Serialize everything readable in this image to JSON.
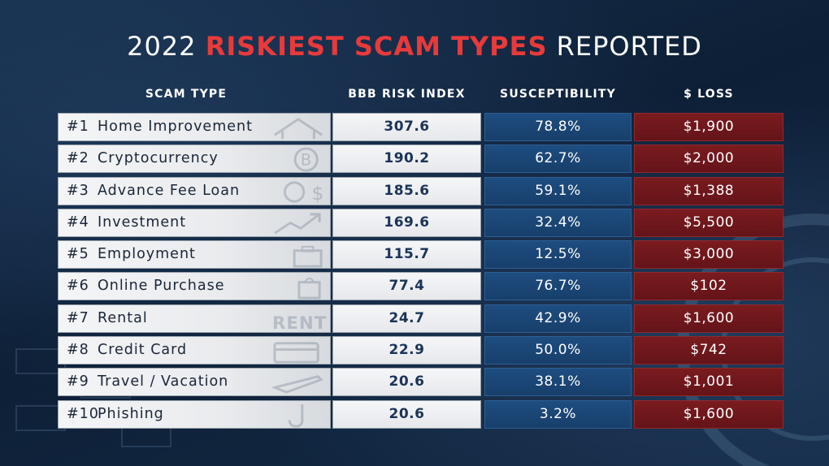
{
  "title": {
    "prefix": "2022",
    "accent": "RISKIEST SCAM TYPES",
    "suffix": "REPORTED"
  },
  "colors": {
    "accent": "#e83a3a",
    "susceptibility": "#1e4d80",
    "loss": "#7a1b1f"
  },
  "chart_data": {
    "type": "table",
    "columns": [
      "SCAM TYPE",
      "BBB RISK INDEX",
      "SUSCEPTIBILITY",
      "$ LOSS"
    ],
    "rows": [
      {
        "rank": "#1",
        "type": "Home Improvement",
        "risk": "307.6",
        "susceptibility": "78.8%",
        "loss": "$1,900",
        "icon": "house-icon"
      },
      {
        "rank": "#2",
        "type": "Cryptocurrency",
        "risk": "190.2",
        "susceptibility": "62.7%",
        "loss": "$2,000",
        "icon": "bitcoin-icon"
      },
      {
        "rank": "#3",
        "type": "Advance Fee Loan",
        "risk": "185.6",
        "susceptibility": "59.1%",
        "loss": "$1,388",
        "icon": "money-icon"
      },
      {
        "rank": "#4",
        "type": "Investment",
        "risk": "169.6",
        "susceptibility": "32.4%",
        "loss": "$5,500",
        "icon": "trend-up-icon"
      },
      {
        "rank": "#5",
        "type": "Employment",
        "risk": "115.7",
        "susceptibility": "12.5%",
        "loss": "$3,000",
        "icon": "briefcase-icon"
      },
      {
        "rank": "#6",
        "type": "Online Purchase",
        "risk": "77.4",
        "susceptibility": "76.7%",
        "loss": "$102",
        "icon": "shopping-bag-icon"
      },
      {
        "rank": "#7",
        "type": "Rental",
        "risk": "24.7",
        "susceptibility": "42.9%",
        "loss": "$1,600",
        "icon": "rent-sign-icon"
      },
      {
        "rank": "#8",
        "type": "Credit Card",
        "risk": "22.9",
        "susceptibility": "50.0%",
        "loss": "$742",
        "icon": "credit-card-icon"
      },
      {
        "rank": "#9",
        "type": "Travel / Vacation",
        "risk": "20.6",
        "susceptibility": "38.1%",
        "loss": "$1,001",
        "icon": "airplane-icon"
      },
      {
        "rank": "#10",
        "type": "Phishing",
        "risk": "20.6",
        "susceptibility": "3.2%",
        "loss": "$1,600",
        "icon": "hook-icon"
      }
    ]
  }
}
